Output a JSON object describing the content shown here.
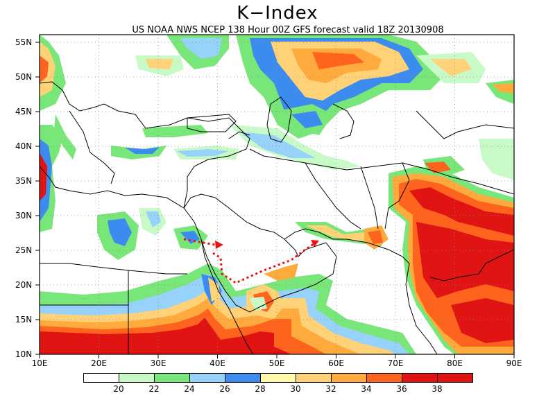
{
  "title": "K−Index",
  "subtitle": "US NOAA NWS NCEP 138 Hour 00Z GFS forecast valid 18Z 20130908",
  "map": {
    "lon_range": [
      10,
      90
    ],
    "lat_range": [
      10,
      56
    ],
    "x_ticks": [
      "10E",
      "20E",
      "30E",
      "40E",
      "50E",
      "60E",
      "70E",
      "80E",
      "90E"
    ],
    "y_ticks": [
      "55N",
      "50N",
      "45N",
      "40N",
      "35N",
      "30N",
      "25N",
      "20N",
      "15N",
      "10N"
    ],
    "grid": "dotted",
    "annotation": "red dotted arrow across Arabian Peninsula"
  },
  "colorbar": {
    "labels": [
      "20",
      "22",
      "24",
      "26",
      "28",
      "30",
      "32",
      "34",
      "36",
      "38"
    ],
    "colors": [
      "#ffffff",
      "#c8fac8",
      "#78e678",
      "#96d2fa",
      "#3c8cf0",
      "#fffaaa",
      "#ffd278",
      "#ffaa3c",
      "#ff641e",
      "#e11414"
    ]
  }
}
